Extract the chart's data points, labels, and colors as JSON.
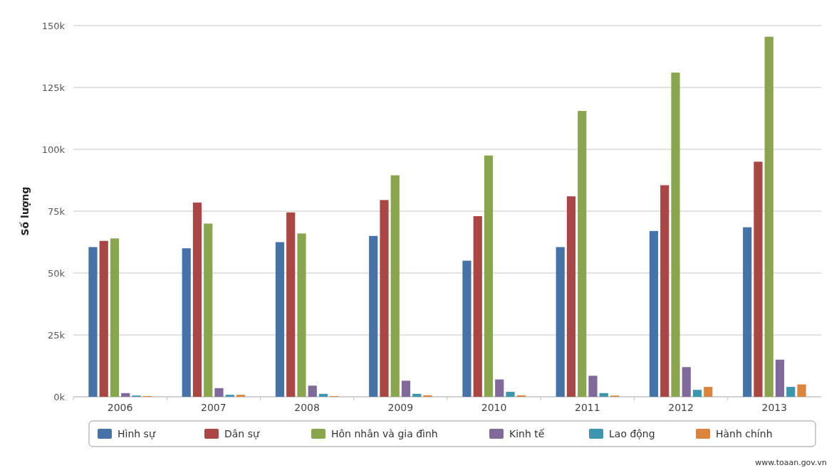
{
  "chart_data": {
    "type": "bar",
    "ylabel": "Số lượng",
    "categories": [
      "2006",
      "2007",
      "2008",
      "2009",
      "2010",
      "2011",
      "2012",
      "2013"
    ],
    "series": [
      {
        "name": "Hình sự",
        "color": "#4572a7",
        "values": [
          60.5,
          60,
          62.5,
          65,
          55,
          60.5,
          67,
          68.5
        ]
      },
      {
        "name": "Dân sự",
        "color": "#aa4643",
        "values": [
          63,
          78.5,
          74.5,
          79.5,
          73,
          81,
          85.5,
          95
        ]
      },
      {
        "name": "Hôn nhân và gia đình",
        "color": "#89a54e",
        "values": [
          64,
          70,
          66,
          89.5,
          97.5,
          115.5,
          131,
          145.5
        ]
      },
      {
        "name": "Kinh tế",
        "color": "#80699b",
        "values": [
          1.5,
          3.5,
          4.5,
          6.5,
          7,
          8.5,
          12,
          15
        ]
      },
      {
        "name": "Lao động",
        "color": "#3d96ae",
        "values": [
          0.5,
          0.8,
          1.2,
          1.2,
          2,
          1.5,
          2.8,
          4
        ]
      },
      {
        "name": "Hành chính",
        "color": "#db843d",
        "values": [
          0.3,
          0.8,
          0.3,
          0.6,
          0.6,
          0.5,
          4,
          5
        ]
      }
    ],
    "ylim": [
      0,
      150
    ],
    "yticks": [
      {
        "value": 0,
        "label": "0k"
      },
      {
        "value": 25,
        "label": "25k"
      },
      {
        "value": 50,
        "label": "50k"
      },
      {
        "value": 75,
        "label": "75k"
      },
      {
        "value": 100,
        "label": "100k"
      },
      {
        "value": 125,
        "label": "125k"
      },
      {
        "value": 150,
        "label": "150k"
      }
    ],
    "grid": "y",
    "legend": "bottom",
    "annotations": [
      "www.toaan.gov.vn"
    ]
  }
}
